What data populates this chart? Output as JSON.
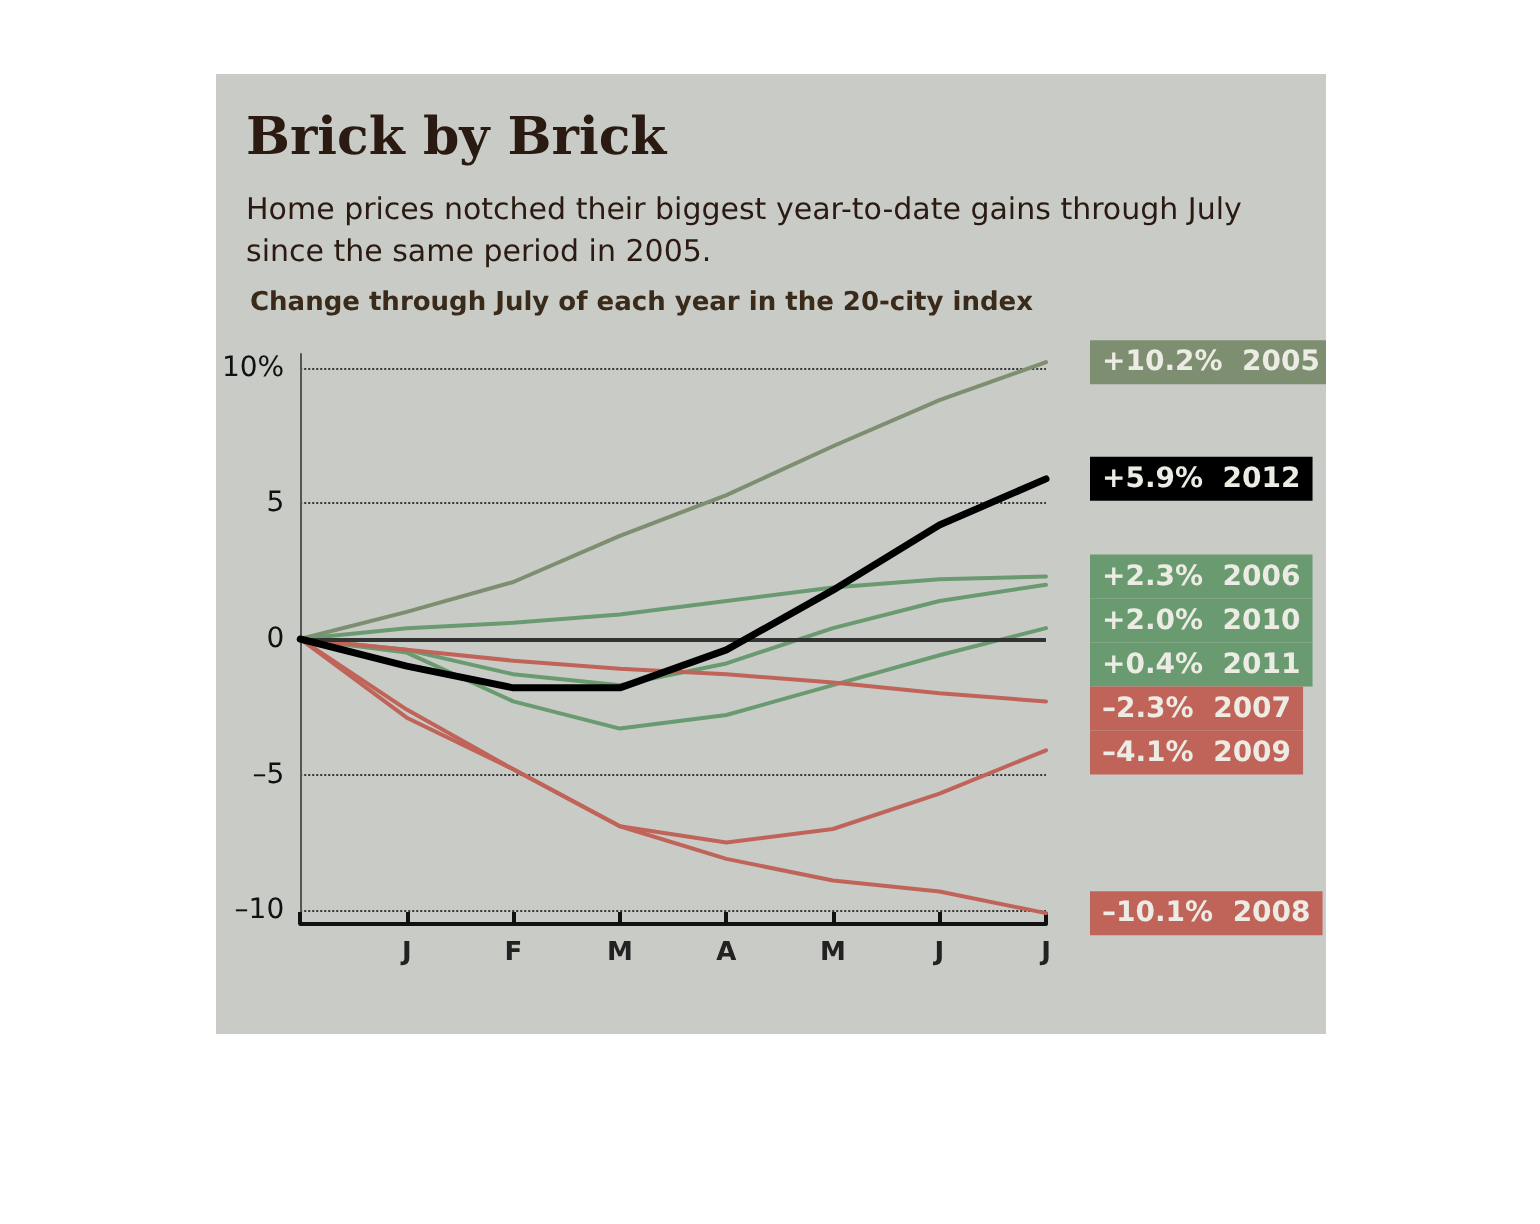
{
  "chart_data": {
    "type": "line",
    "title": "Brick by Brick",
    "subtitle": "Home prices notched their biggest year-to-date gains through July since the same period in 2005.",
    "ylabel": "Change through July of each year in the 20-city index",
    "categories": [
      null,
      "J",
      "F",
      "M",
      "A",
      "M",
      "J",
      "J"
    ],
    "series": [
      {
        "name": "2005",
        "color": "#7d8f70",
        "values": [
          0,
          1.0,
          2.1,
          3.8,
          5.3,
          7.1,
          8.8,
          10.2
        ],
        "value_labels": [
          null,
          null,
          null,
          null,
          null,
          null,
          null,
          "+10.2%"
        ]
      },
      {
        "name": "2012",
        "color": "#000000",
        "values": [
          0,
          -1.0,
          -1.8,
          -1.8,
          -0.4,
          1.8,
          4.2,
          5.9
        ],
        "value_labels": [
          null,
          null,
          null,
          null,
          null,
          null,
          null,
          "+5.9%"
        ]
      },
      {
        "name": "2006",
        "color": "#6a9a70",
        "values": [
          0,
          0.4,
          0.6,
          0.9,
          1.4,
          1.9,
          2.2,
          2.3
        ],
        "value_labels": [
          null,
          null,
          null,
          null,
          null,
          null,
          null,
          "+2.3%"
        ]
      },
      {
        "name": "2010",
        "color": "#6a9a70",
        "values": [
          0,
          -0.4,
          -1.3,
          -1.7,
          -0.9,
          0.4,
          1.4,
          2.0
        ],
        "value_labels": [
          null,
          null,
          null,
          null,
          null,
          null,
          null,
          "+2.0%"
        ]
      },
      {
        "name": "2011",
        "color": "#6a9a70",
        "values": [
          0,
          -0.5,
          -2.3,
          -3.3,
          -2.8,
          -1.7,
          -0.6,
          0.4
        ],
        "value_labels": [
          null,
          null,
          null,
          null,
          null,
          null,
          null,
          "+0.4%"
        ]
      },
      {
        "name": "2007",
        "color": "#c0645a",
        "values": [
          0,
          -0.4,
          -0.8,
          -1.1,
          -1.3,
          -1.6,
          -2.0,
          -2.3
        ],
        "value_labels": [
          null,
          null,
          null,
          null,
          null,
          null,
          null,
          "–2.3%"
        ]
      },
      {
        "name": "2009",
        "color": "#c0645a",
        "values": [
          0,
          -2.6,
          -4.8,
          -6.9,
          -7.5,
          -7.0,
          -5.7,
          -4.1
        ],
        "value_labels": [
          null,
          null,
          null,
          null,
          null,
          null,
          null,
          "–4.1%"
        ]
      },
      {
        "name": "2008",
        "color": "#c0645a",
        "values": [
          0,
          -2.9,
          -4.8,
          -6.9,
          -8.1,
          -8.9,
          -9.3,
          -10.1
        ],
        "value_labels": [
          null,
          null,
          null,
          null,
          null,
          null,
          null,
          "–10.1%"
        ]
      }
    ],
    "ylim": [
      -10.5,
      10.5
    ],
    "yticks": [
      {
        "value": -10,
        "label": "–10"
      },
      {
        "value": -5,
        "label": "–5"
      },
      0,
      5,
      {
        "value": 10,
        "label": "10%"
      }
    ],
    "grid": "y",
    "legend": false,
    "marker": "none",
    "line_style": "solid",
    "ref_lines": [
      {
        "axis": "y",
        "value": 0,
        "color": "#333333"
      }
    ]
  }
}
